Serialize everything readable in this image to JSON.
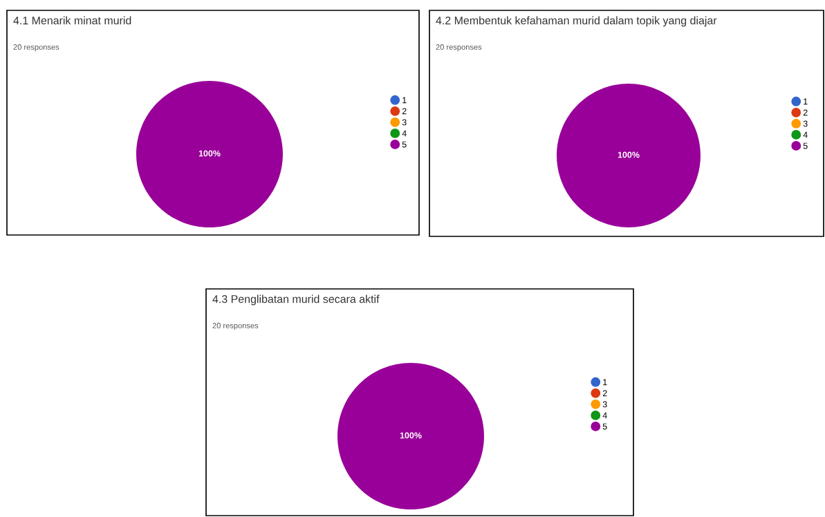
{
  "chart_data": [
    {
      "type": "pie",
      "title": "4.1 Menarik minat murid",
      "subtitle": "20 responses",
      "categories": [
        "1",
        "2",
        "3",
        "4",
        "5"
      ],
      "values": [
        0,
        0,
        0,
        0,
        100
      ],
      "colors": [
        "#3366cc",
        "#dc3912",
        "#ff9900",
        "#109618",
        "#990099"
      ],
      "value_labels": [
        null,
        null,
        null,
        null,
        "100%"
      ],
      "legend": "right"
    },
    {
      "type": "pie",
      "title": "4.2 Membentuk kefahaman murid dalam topik yang diajar",
      "subtitle": "20 responses",
      "categories": [
        "1",
        "2",
        "3",
        "4",
        "5"
      ],
      "values": [
        0,
        0,
        0,
        0,
        100
      ],
      "colors": [
        "#3366cc",
        "#dc3912",
        "#ff9900",
        "#109618",
        "#990099"
      ],
      "value_labels": [
        null,
        null,
        null,
        null,
        "100%"
      ],
      "legend": "right"
    },
    {
      "type": "pie",
      "title": "4.3 Penglibatan murid secara aktif",
      "subtitle": "20 responses",
      "categories": [
        "1",
        "2",
        "3",
        "4",
        "5"
      ],
      "values": [
        0,
        0,
        0,
        0,
        100
      ],
      "colors": [
        "#3366cc",
        "#dc3912",
        "#ff9900",
        "#109618",
        "#990099"
      ],
      "value_labels": [
        null,
        null,
        null,
        null,
        "100%"
      ],
      "legend": "right"
    }
  ]
}
